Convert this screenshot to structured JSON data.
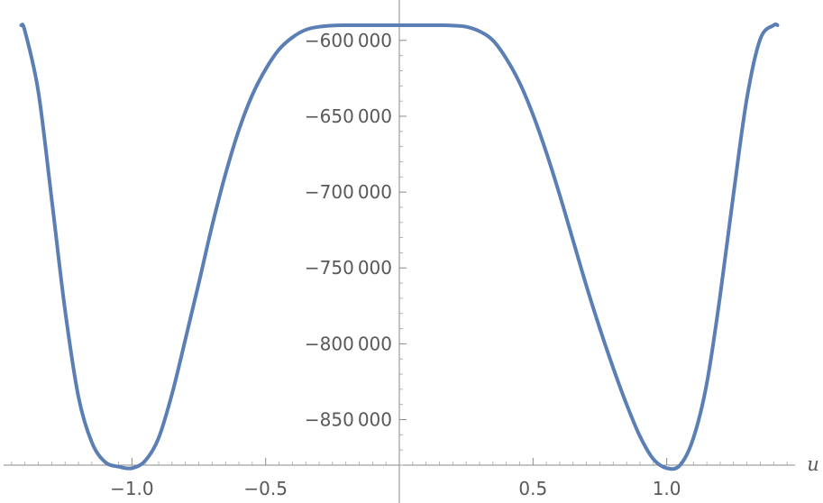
{
  "chart_data": {
    "type": "line",
    "title": "",
    "xlabel": "u",
    "ylabel": "",
    "xlim": [
      -1.48,
      1.48
    ],
    "ylim": [
      -880000,
      -590000
    ],
    "grid": false,
    "x_ticks": [
      {
        "value": -1.0,
        "label": "−1.0"
      },
      {
        "value": -0.5,
        "label": "−0.5"
      },
      {
        "value": 0.5,
        "label": "0.5"
      },
      {
        "value": 1.0,
        "label": "1.0"
      }
    ],
    "y_ticks": [
      {
        "value": -600000,
        "label": "−600 000"
      },
      {
        "value": -650000,
        "label": "−650 000"
      },
      {
        "value": -700000,
        "label": "−700 000"
      },
      {
        "value": -750000,
        "label": "−750 000"
      },
      {
        "value": -800000,
        "label": "−800 000"
      },
      {
        "value": -850000,
        "label": "−850 000"
      }
    ],
    "series": [
      {
        "color": "#5b7fb5",
        "x": [
          -1.414,
          -1.4,
          -1.35,
          -1.3,
          -1.25,
          -1.2,
          -1.15,
          -1.1,
          -1.05,
          -1.0,
          -0.95,
          -0.9,
          -0.85,
          -0.8,
          -0.75,
          -0.7,
          -0.65,
          -0.6,
          -0.55,
          -0.5,
          -0.45,
          -0.4,
          -0.35,
          -0.3,
          -0.25,
          -0.2,
          -0.15,
          -0.1,
          -0.05,
          0.0,
          0.05,
          0.1,
          0.15,
          0.2,
          0.25,
          0.3,
          0.35,
          0.4,
          0.45,
          0.5,
          0.55,
          0.6,
          0.65,
          0.7,
          0.75,
          0.8,
          0.85,
          0.9,
          0.95,
          1.0,
          1.05,
          1.1,
          1.15,
          1.2,
          1.25,
          1.3,
          1.35,
          1.4,
          1.414
        ],
        "y": [
          -590000,
          -594000,
          -634000,
          -705000,
          -778000,
          -835000,
          -865000,
          -878000,
          -881000,
          -882000,
          -877000,
          -862000,
          -833000,
          -797000,
          -760000,
          -722000,
          -688000,
          -659000,
          -636000,
          -619000,
          -606000,
          -598000,
          -593000,
          -591000,
          -590200,
          -590000,
          -590000,
          -590000,
          -590000,
          -590000,
          -590000,
          -590000,
          -590000,
          -590200,
          -591000,
          -594000,
          -600000,
          -612000,
          -628000,
          -649000,
          -674000,
          -702000,
          -732000,
          -762000,
          -790000,
          -816000,
          -840000,
          -861000,
          -876000,
          -882000,
          -880000,
          -862000,
          -826000,
          -768000,
          -701000,
          -638000,
          -599000,
          -590000,
          -590000
        ]
      }
    ]
  }
}
